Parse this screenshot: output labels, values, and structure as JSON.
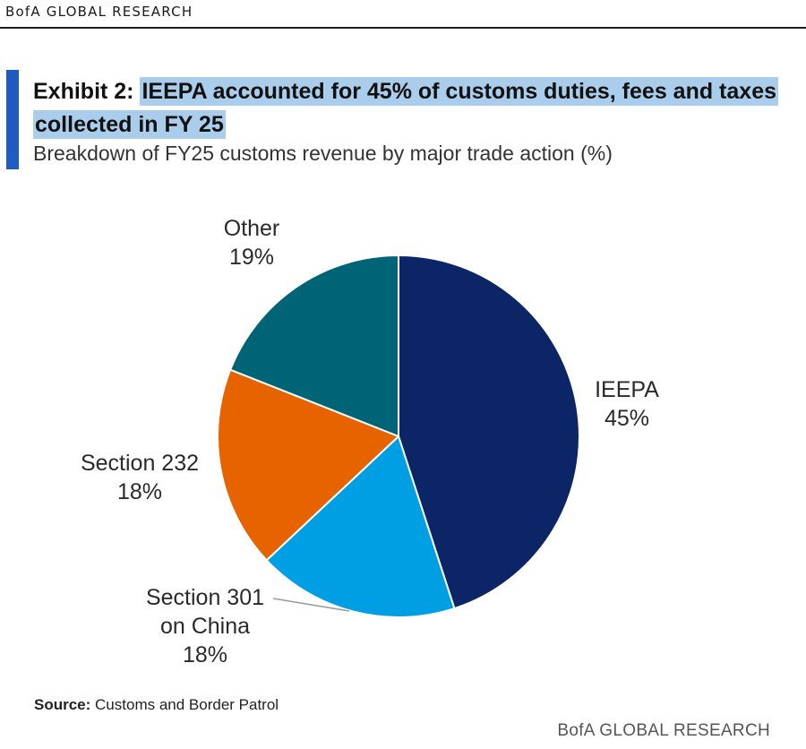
{
  "header": {
    "brand": "BofA GLOBAL RESEARCH"
  },
  "exhibit": {
    "label": "Exhibit 2:",
    "title_text": "IEEPA accounted for 45% of customs duties, fees and taxes collected in FY 25",
    "subtitle": "Breakdown of FY25 customs revenue by major trade action (%)"
  },
  "colors": {
    "accent": "#1f5bc4",
    "highlight": "#a9cdea"
  },
  "chart_data": {
    "type": "pie",
    "title": "Breakdown of FY25 customs revenue by major trade action (%)",
    "start_angle_deg": 0,
    "direction": "clockwise",
    "slices": [
      {
        "name": "IEEPA",
        "label_lines": [
          "IEEPA",
          "45%"
        ],
        "value": 45,
        "color": "#0c2566"
      },
      {
        "name": "Section 301 on China",
        "label_lines": [
          "Section 301",
          "on China",
          "18%"
        ],
        "value": 18,
        "color": "#009fe3"
      },
      {
        "name": "Section 232",
        "label_lines": [
          "Section 232",
          "18%"
        ],
        "value": 18,
        "color": "#e66300"
      },
      {
        "name": "Other",
        "label_lines": [
          "Other",
          "19%"
        ],
        "value": 19,
        "color": "#006477"
      }
    ]
  },
  "footer": {
    "source_label": "Source:",
    "source_text": "Customs and Border Patrol",
    "brand": "BofA GLOBAL RESEARCH"
  }
}
